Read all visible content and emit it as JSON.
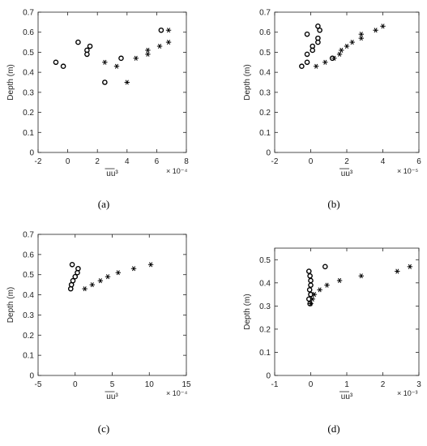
{
  "chart_data": [
    {
      "type": "scatter",
      "caption": "(a)",
      "xlabel": "uu³",
      "ylabel": "Depth (m)",
      "x_multiplier": "× 10⁻⁴",
      "xlim": [
        -2,
        8
      ],
      "ylim": [
        0,
        0.7
      ],
      "xticks": [
        -2,
        0,
        2,
        4,
        6,
        8
      ],
      "yticks": [
        0,
        0.1,
        0.2,
        0.3,
        0.4,
        0.5,
        0.6,
        0.7
      ],
      "series": [
        {
          "marker": "circle",
          "points": [
            [
              -0.8,
              0.45
            ],
            [
              -0.3,
              0.43
            ],
            [
              0.7,
              0.55
            ],
            [
              1.3,
              0.49
            ],
            [
              1.3,
              0.51
            ],
            [
              1.5,
              0.53
            ],
            [
              2.5,
              0.35
            ],
            [
              3.6,
              0.47
            ],
            [
              6.3,
              0.61
            ]
          ]
        },
        {
          "marker": "asterisk",
          "points": [
            [
              2.5,
              0.45
            ],
            [
              3.3,
              0.43
            ],
            [
              4.0,
              0.35
            ],
            [
              4.6,
              0.47
            ],
            [
              5.4,
              0.49
            ],
            [
              5.4,
              0.51
            ],
            [
              6.2,
              0.53
            ],
            [
              6.8,
              0.55
            ],
            [
              6.8,
              0.61
            ]
          ]
        }
      ]
    },
    {
      "type": "scatter",
      "caption": "(b)",
      "xlabel": "uu³",
      "ylabel": "Depth (m)",
      "x_multiplier": "× 10⁻⁵",
      "xlim": [
        -2,
        6
      ],
      "ylim": [
        0,
        0.7
      ],
      "xticks": [
        -2,
        0,
        2,
        4,
        6
      ],
      "yticks": [
        0,
        0.1,
        0.2,
        0.3,
        0.4,
        0.5,
        0.6,
        0.7
      ],
      "series": [
        {
          "marker": "circle",
          "points": [
            [
              -0.5,
              0.43
            ],
            [
              -0.2,
              0.45
            ],
            [
              -0.2,
              0.49
            ],
            [
              -0.2,
              0.59
            ],
            [
              0.1,
              0.51
            ],
            [
              0.1,
              0.53
            ],
            [
              0.4,
              0.55
            ],
            [
              0.4,
              0.57
            ],
            [
              0.4,
              0.63
            ],
            [
              0.5,
              0.61
            ],
            [
              1.2,
              0.47
            ]
          ]
        },
        {
          "marker": "asterisk",
          "points": [
            [
              0.3,
              0.43
            ],
            [
              0.8,
              0.45
            ],
            [
              1.3,
              0.47
            ],
            [
              1.6,
              0.49
            ],
            [
              1.7,
              0.51
            ],
            [
              2.0,
              0.53
            ],
            [
              2.3,
              0.55
            ],
            [
              2.8,
              0.57
            ],
            [
              2.8,
              0.59
            ],
            [
              3.6,
              0.61
            ],
            [
              4.0,
              0.63
            ]
          ]
        }
      ]
    },
    {
      "type": "scatter",
      "caption": "(c)",
      "xlabel": "uu³",
      "ylabel": "Depth (m)",
      "x_multiplier": "× 10⁻⁴",
      "xlim": [
        -5,
        15
      ],
      "ylim": [
        0,
        0.7
      ],
      "xticks": [
        -5,
        0,
        5,
        10,
        15
      ],
      "yticks": [
        0,
        0.1,
        0.2,
        0.3,
        0.4,
        0.5,
        0.6,
        0.7
      ],
      "series": [
        {
          "marker": "circle",
          "points": [
            [
              -0.6,
              0.43
            ],
            [
              -0.5,
              0.45
            ],
            [
              -0.3,
              0.47
            ],
            [
              0.0,
              0.49
            ],
            [
              0.3,
              0.51
            ],
            [
              0.4,
              0.53
            ],
            [
              -0.4,
              0.55
            ]
          ]
        },
        {
          "marker": "asterisk",
          "points": [
            [
              1.3,
              0.43
            ],
            [
              2.3,
              0.45
            ],
            [
              3.4,
              0.47
            ],
            [
              4.4,
              0.49
            ],
            [
              5.8,
              0.51
            ],
            [
              7.9,
              0.53
            ],
            [
              10.2,
              0.55
            ]
          ]
        }
      ]
    },
    {
      "type": "scatter",
      "caption": "(d)",
      "xlabel": "uu³",
      "ylabel": "Depth (m)",
      "x_multiplier": "× 10⁻³",
      "xlim": [
        -1,
        3
      ],
      "ylim": [
        0,
        0.55
      ],
      "xticks": [
        -1,
        0,
        1,
        2,
        3
      ],
      "yticks": [
        0,
        0.1,
        0.2,
        0.3,
        0.4,
        0.5
      ],
      "series": [
        {
          "marker": "circle",
          "points": [
            [
              -0.02,
              0.31
            ],
            [
              -0.05,
              0.33
            ],
            [
              0.0,
              0.35
            ],
            [
              -0.03,
              0.37
            ],
            [
              0.0,
              0.39
            ],
            [
              0.0,
              0.41
            ],
            [
              -0.02,
              0.43
            ],
            [
              -0.05,
              0.45
            ],
            [
              0.4,
              0.47
            ]
          ]
        },
        {
          "marker": "asterisk",
          "points": [
            [
              0.0,
              0.31
            ],
            [
              0.05,
              0.33
            ],
            [
              0.1,
              0.35
            ],
            [
              0.25,
              0.37
            ],
            [
              0.45,
              0.39
            ],
            [
              0.8,
              0.41
            ],
            [
              1.4,
              0.43
            ],
            [
              2.4,
              0.45
            ],
            [
              2.75,
              0.47
            ]
          ]
        }
      ]
    }
  ]
}
